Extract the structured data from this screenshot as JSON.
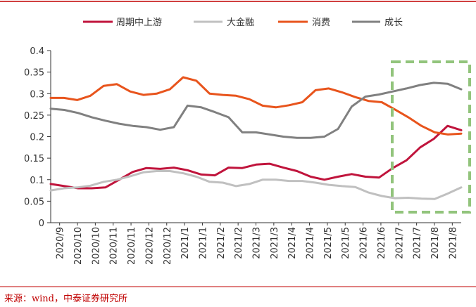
{
  "chart_data": {
    "type": "line",
    "title": "",
    "xlabel": "",
    "ylabel": "",
    "ylim": [
      0,
      0.4
    ],
    "y_ticks": [
      "0",
      "0.05",
      "0.1",
      "0.15",
      "0.2",
      "0.25",
      "0.3",
      "0.35",
      "0.4"
    ],
    "x_tick_labels": [
      "2020/9",
      "2020/10",
      "2020/10",
      "2020/11",
      "2020/11",
      "2020/12",
      "2020/12",
      "2021/1",
      "2021/1",
      "2021/2",
      "2021/2",
      "2021/3",
      "2021/3",
      "2021/4",
      "2021/4",
      "2021/5",
      "2021/5",
      "2021/6",
      "2021/6",
      "2021/7",
      "2021/7",
      "2021/8",
      "2021/8"
    ],
    "grid": false,
    "legend_position": "top",
    "series": [
      {
        "name": "周期中上游",
        "color": "#c0143c",
        "values": [
          0.09,
          0.085,
          0.08,
          0.08,
          0.082,
          0.1,
          0.118,
          0.127,
          0.125,
          0.128,
          0.122,
          0.112,
          0.11,
          0.128,
          0.127,
          0.135,
          0.137,
          0.128,
          0.12,
          0.107,
          0.1,
          0.107,
          0.113,
          0.107,
          0.105,
          0.127,
          0.145,
          0.175,
          0.195,
          0.225,
          0.215
        ]
      },
      {
        "name": "大金融",
        "color": "#c0c0c0",
        "values": [
          0.075,
          0.08,
          0.082,
          0.086,
          0.095,
          0.1,
          0.108,
          0.117,
          0.12,
          0.12,
          0.115,
          0.107,
          0.095,
          0.093,
          0.085,
          0.09,
          0.1,
          0.1,
          0.097,
          0.097,
          0.093,
          0.088,
          0.085,
          0.083,
          0.07,
          0.062,
          0.057,
          0.058,
          0.056,
          0.055,
          0.068,
          0.082
        ]
      },
      {
        "name": "消费",
        "color": "#e8541c",
        "values": [
          0.29,
          0.29,
          0.285,
          0.295,
          0.318,
          0.322,
          0.305,
          0.297,
          0.3,
          0.31,
          0.338,
          0.33,
          0.3,
          0.297,
          0.295,
          0.287,
          0.272,
          0.268,
          0.273,
          0.28,
          0.308,
          0.312,
          0.303,
          0.292,
          0.283,
          0.28,
          0.263,
          0.245,
          0.225,
          0.21,
          0.205,
          0.207
        ]
      },
      {
        "name": "成长",
        "color": "#808080",
        "values": [
          0.265,
          0.262,
          0.255,
          0.245,
          0.237,
          0.23,
          0.225,
          0.222,
          0.216,
          0.222,
          0.272,
          0.268,
          0.257,
          0.245,
          0.21,
          0.21,
          0.205,
          0.2,
          0.197,
          0.197,
          0.2,
          0.218,
          0.27,
          0.293,
          0.298,
          0.305,
          0.312,
          0.32,
          0.325,
          0.323,
          0.31
        ]
      }
    ]
  },
  "source_note": "来源：wind，中泰证券研究所"
}
